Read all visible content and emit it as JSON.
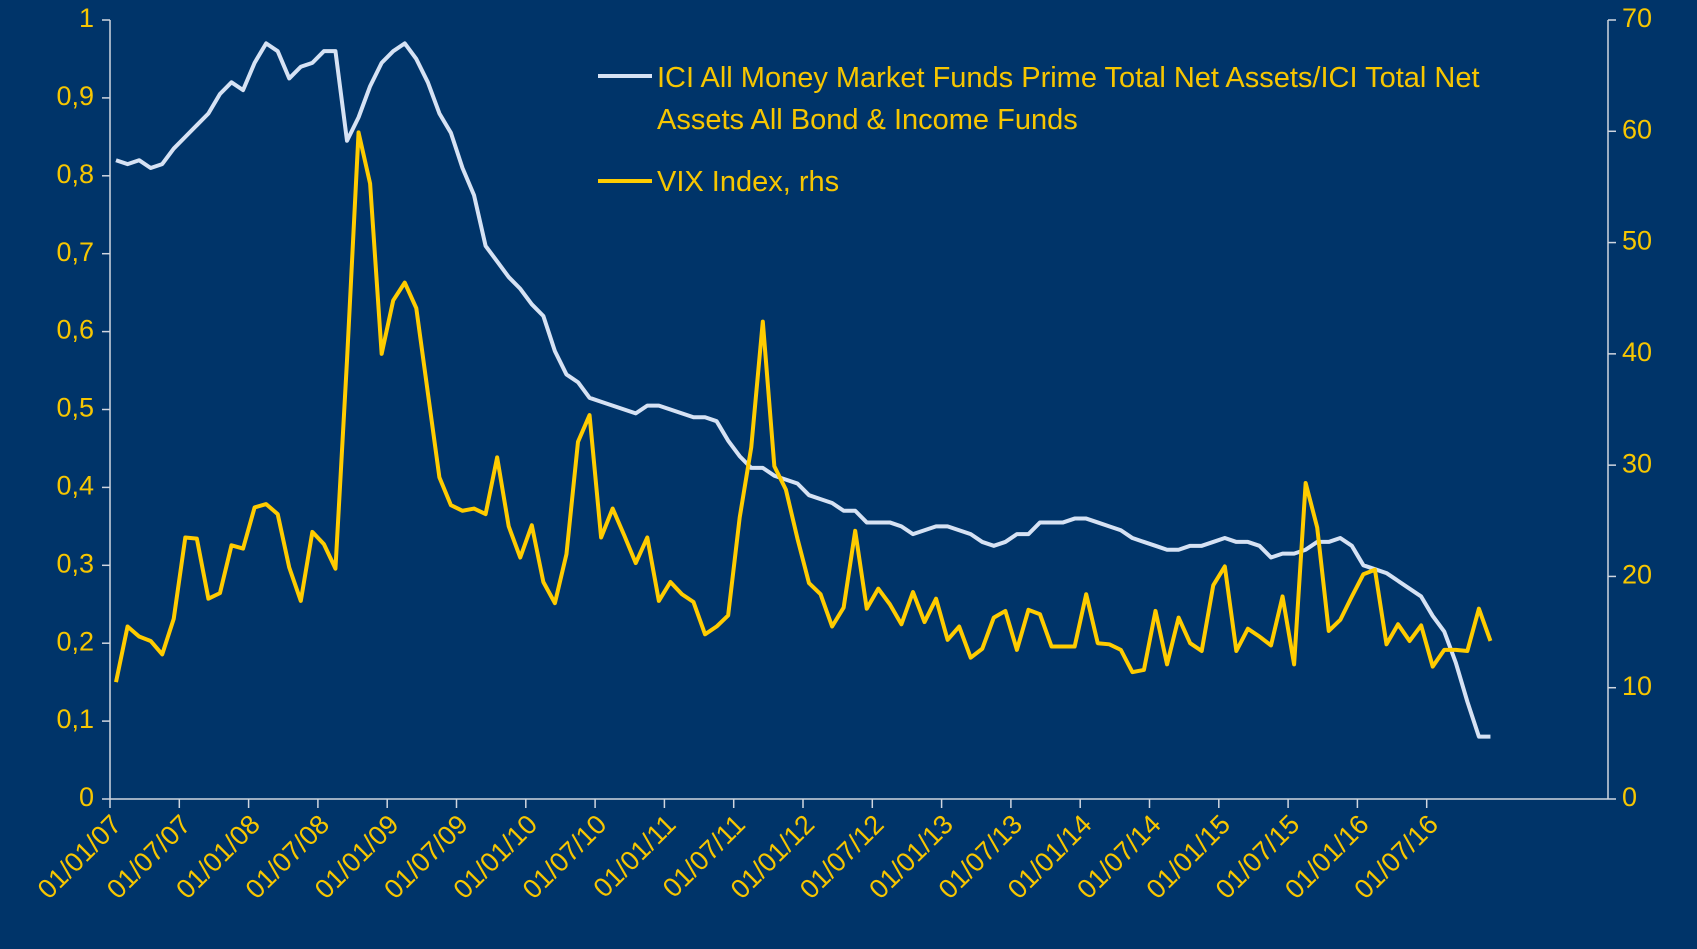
{
  "chart_data": {
    "type": "line",
    "x": [
      "01/01/07",
      "01/02/07",
      "01/03/07",
      "01/04/07",
      "01/05/07",
      "01/06/07",
      "01/07/07",
      "01/08/07",
      "01/09/07",
      "01/10/07",
      "01/11/07",
      "01/12/07",
      "01/01/08",
      "01/02/08",
      "01/03/08",
      "01/04/08",
      "01/05/08",
      "01/06/08",
      "01/07/08",
      "01/08/08",
      "01/09/08",
      "01/10/08",
      "01/11/08",
      "01/12/08",
      "01/01/09",
      "01/02/09",
      "01/03/09",
      "01/04/09",
      "01/05/09",
      "01/06/09",
      "01/07/09",
      "01/08/09",
      "01/09/09",
      "01/10/09",
      "01/11/09",
      "01/12/09",
      "01/01/10",
      "01/02/10",
      "01/03/10",
      "01/04/10",
      "01/05/10",
      "01/06/10",
      "01/07/10",
      "01/08/10",
      "01/09/10",
      "01/10/10",
      "01/11/10",
      "01/12/10",
      "01/01/11",
      "01/02/11",
      "01/03/11",
      "01/04/11",
      "01/05/11",
      "01/06/11",
      "01/07/11",
      "01/08/11",
      "01/09/11",
      "01/10/11",
      "01/11/11",
      "01/12/11",
      "01/01/12",
      "01/02/12",
      "01/03/12",
      "01/04/12",
      "01/05/12",
      "01/06/12",
      "01/07/12",
      "01/08/12",
      "01/09/12",
      "01/10/12",
      "01/11/12",
      "01/12/12",
      "01/01/13",
      "01/02/13",
      "01/03/13",
      "01/04/13",
      "01/05/13",
      "01/06/13",
      "01/07/13",
      "01/08/13",
      "01/09/13",
      "01/10/13",
      "01/11/13",
      "01/12/13",
      "01/01/14",
      "01/02/14",
      "01/03/14",
      "01/04/14",
      "01/05/14",
      "01/06/14",
      "01/07/14",
      "01/08/14",
      "01/09/14",
      "01/10/14",
      "01/11/14",
      "01/12/14",
      "01/01/15",
      "01/02/15",
      "01/03/15",
      "01/04/15",
      "01/05/15",
      "01/06/15",
      "01/07/15",
      "01/08/15",
      "01/09/15",
      "01/10/15",
      "01/11/15",
      "01/12/15",
      "01/01/16",
      "01/02/16",
      "01/03/16",
      "01/04/16",
      "01/05/16",
      "01/06/16",
      "01/07/16",
      "01/08/16",
      "01/09/16",
      "01/10/16",
      "01/11/16",
      "01/12/16"
    ],
    "xticks": [
      "01/01/07",
      "01/07/07",
      "01/01/08",
      "01/07/08",
      "01/01/09",
      "01/07/09",
      "01/01/10",
      "01/07/10",
      "01/01/11",
      "01/07/11",
      "01/01/12",
      "01/07/12",
      "01/01/13",
      "01/07/13",
      "01/01/14",
      "01/07/14",
      "01/01/15",
      "01/07/15",
      "01/01/16",
      "01/07/16"
    ],
    "ylim": [
      0,
      1
    ],
    "yticks": [
      0,
      {
        "value": 0.1,
        "label": "0,1"
      },
      {
        "value": 0.2,
        "label": "0,2"
      },
      {
        "value": 0.3,
        "label": "0,3"
      },
      {
        "value": 0.4,
        "label": "0,4"
      },
      {
        "value": 0.5,
        "label": "0,5"
      },
      {
        "value": 0.6,
        "label": "0,6"
      },
      {
        "value": 0.7,
        "label": "0,7"
      },
      {
        "value": 0.8,
        "label": "0,8"
      },
      {
        "value": 0.9,
        "label": "0,9"
      },
      1
    ],
    "y2lim": [
      0,
      70
    ],
    "y2ticks": [
      0,
      10,
      20,
      30,
      40,
      50,
      60,
      70
    ],
    "series": [
      {
        "name": "ICI All Money Market Funds Prime Total Net Assets/ICI Total Net Assets All Bond & Income Funds",
        "color": "#d6e2f4",
        "values": [
          0.82,
          0.815,
          0.82,
          0.81,
          0.815,
          0.835,
          0.85,
          0.865,
          0.88,
          0.905,
          0.92,
          0.91,
          0.945,
          0.97,
          0.96,
          0.925,
          0.94,
          0.945,
          0.96,
          0.96,
          0.845,
          0.875,
          0.915,
          0.945,
          0.96,
          0.97,
          0.95,
          0.92,
          0.88,
          0.855,
          0.81,
          0.775,
          0.71,
          0.69,
          0.67,
          0.655,
          0.635,
          0.62,
          0.575,
          0.545,
          0.535,
          0.515,
          0.51,
          0.505,
          0.5,
          0.495,
          0.505,
          0.505,
          0.5,
          0.495,
          0.49,
          0.49,
          0.485,
          0.46,
          0.44,
          0.425,
          0.425,
          0.415,
          0.41,
          0.405,
          0.39,
          0.385,
          0.38,
          0.37,
          0.37,
          0.355,
          0.355,
          0.355,
          0.35,
          0.34,
          0.345,
          0.35,
          0.35,
          0.345,
          0.34,
          0.33,
          0.325,
          0.33,
          0.34,
          0.34,
          0.355,
          0.355,
          0.355,
          0.36,
          0.36,
          0.355,
          0.35,
          0.345,
          0.335,
          0.33,
          0.325,
          0.32,
          0.32,
          0.325,
          0.325,
          0.33,
          0.335,
          0.33,
          0.33,
          0.325,
          0.31,
          0.315,
          0.315,
          0.32,
          0.33,
          0.33,
          0.335,
          0.325,
          0.3,
          0.295,
          0.29,
          0.28,
          0.27,
          0.26,
          0.235,
          0.215,
          0.175,
          0.125,
          0.08,
          0.08
        ]
      },
      {
        "name": "VIX Index, rhs",
        "color": "#ffcc00",
        "axis": "y2",
        "values": [
          10.5,
          15.5,
          14.6,
          14.2,
          13,
          16.2,
          23.5,
          23.4,
          18,
          18.5,
          22.8,
          22.5,
          26.2,
          26.5,
          25.6,
          20.8,
          17.8,
          24,
          22.9,
          20.7,
          39.4,
          59.9,
          55.3,
          40,
          44.8,
          46.4,
          44.1,
          36.5,
          28.9,
          26.4,
          25.9,
          26.1,
          25.6,
          30.7,
          24.5,
          21.7,
          24.6,
          19.5,
          17.6,
          22,
          32.1,
          34.5,
          23.5,
          26.1,
          23.7,
          21.2,
          23.5,
          17.8,
          19.5,
          18.4,
          17.7,
          14.8,
          15.5,
          16.5,
          25.3,
          31.6,
          42.9,
          29.9,
          27.8,
          23.4,
          19.4,
          18.4,
          15.5,
          17.2,
          24.1,
          17.1,
          18.9,
          17.5,
          15.7,
          18.6,
          15.9,
          18,
          14.3,
          15.5,
          12.7,
          13.5,
          16.3,
          16.9,
          13.4,
          17,
          16.6,
          13.7,
          13.7,
          13.7,
          18.4,
          14,
          13.9,
          13.4,
          11.4,
          11.6,
          16.9,
          12.1,
          16.3,
          14,
          13.3,
          19.2,
          20.9,
          13.3,
          15.3,
          14.6,
          13.8,
          18.2,
          12.1,
          28.4,
          24.4,
          15.1,
          16.1,
          18.2,
          20.2,
          20.6,
          13.9,
          15.7,
          14.2,
          15.6,
          11.9,
          13.4,
          13.4,
          13.3,
          17.1,
          14.2
        ]
      }
    ]
  }
}
